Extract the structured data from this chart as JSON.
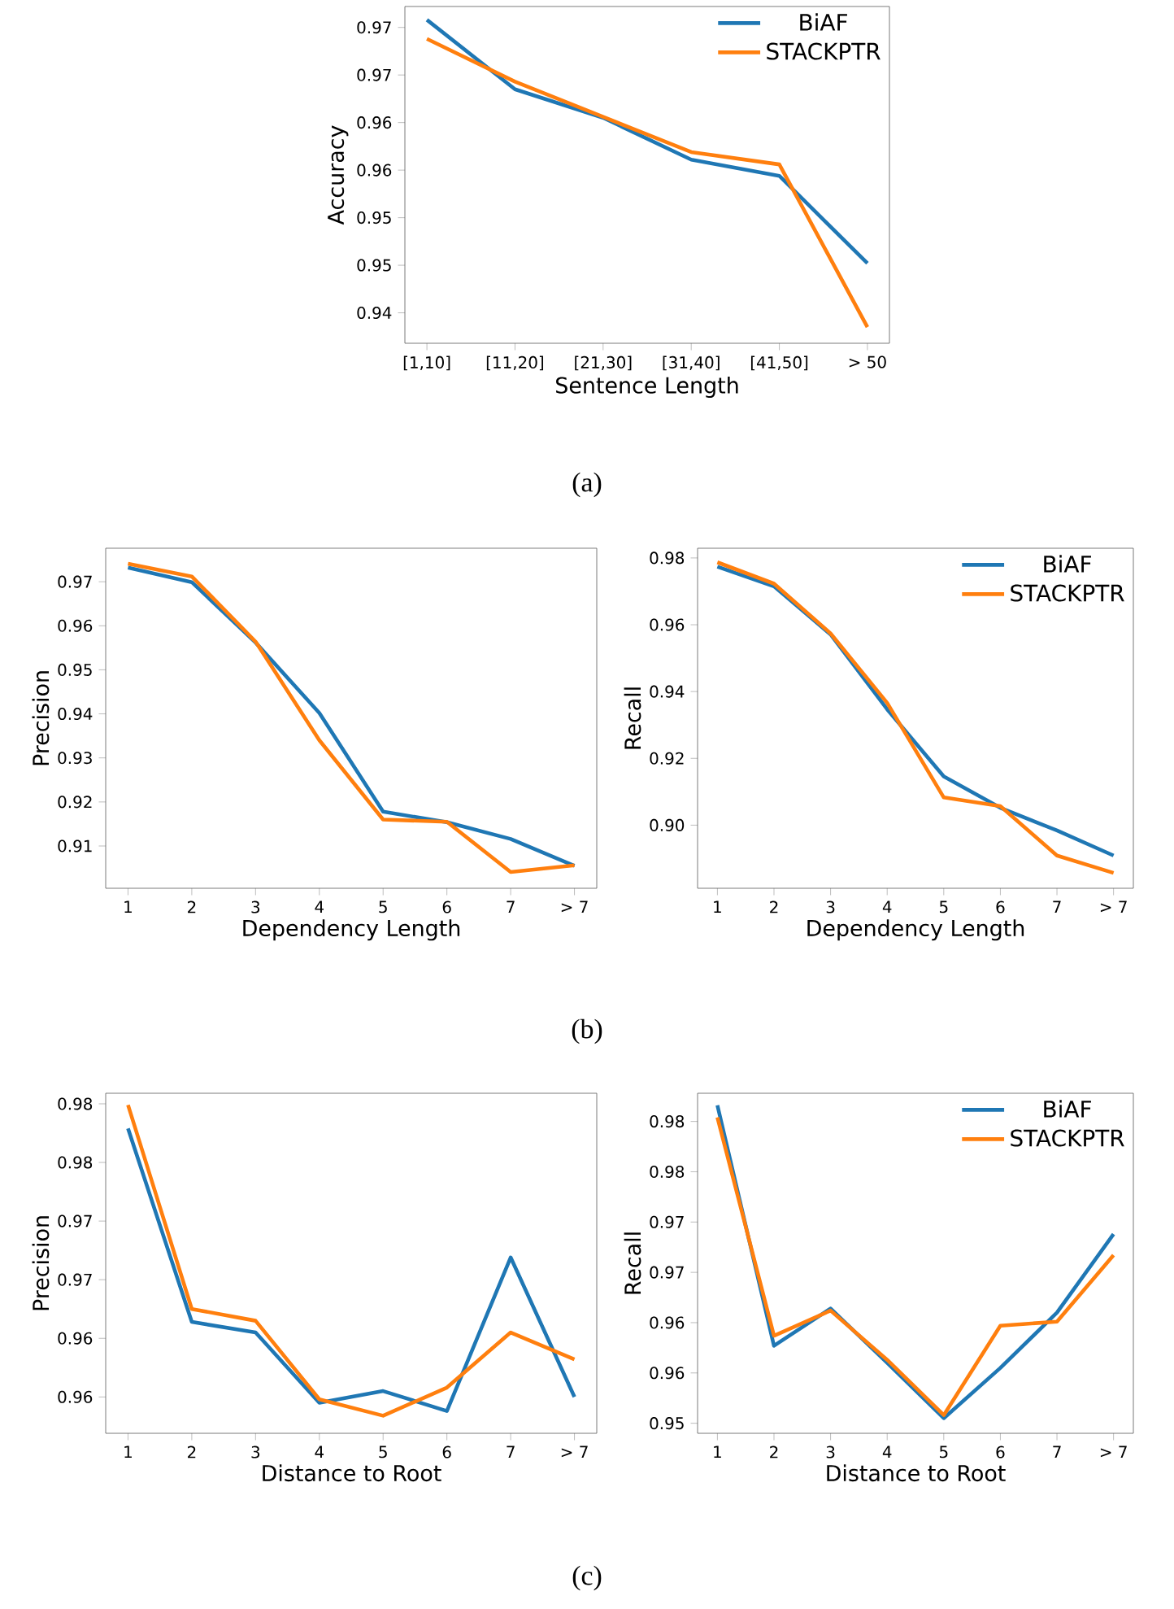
{
  "chart_data": [
    {
      "type": "line",
      "categories": [
        "[1,10]",
        "[11,20]",
        "[21,30]",
        "[31,40]",
        "[41,50]",
        "> 50"
      ],
      "xlabel": "Sentence Length",
      "ylabel": "Accuracy",
      "legend": "top right",
      "annotations": [
        "(a)"
      ],
      "ylim": [
        0.9418,
        0.9772
      ],
      "yticks": [
        {
          "value": 0.945,
          "label": "0.94"
        },
        {
          "value": 0.95,
          "label": "0.95"
        },
        {
          "value": 0.955,
          "label": "0.95"
        },
        {
          "value": 0.96,
          "label": "0.96"
        },
        {
          "value": 0.965,
          "label": "0.96"
        },
        {
          "value": 0.97,
          "label": "0.97"
        },
        {
          "value": 0.975,
          "label": "0.97"
        }
      ],
      "series": [
        {
          "name": "BiAF",
          "color": "#1f77b4",
          "values": [
            0.9758,
            0.9685,
            0.9655,
            0.9611,
            0.9594,
            0.9502
          ]
        },
        {
          "name": "STACKPTR",
          "color": "#ff7f0e",
          "values": [
            0.9738,
            0.9693,
            0.9656,
            0.9619,
            0.9606,
            0.9435
          ]
        }
      ]
    },
    {
      "type": "line",
      "categories": [
        "1",
        "2",
        "3",
        "4",
        "5",
        "6",
        "7",
        "> 7"
      ],
      "xlabel": "Dependency Length",
      "ylabel": "Precision",
      "annotations": [
        "(b)"
      ],
      "ylim": [
        0.9004,
        0.9776
      ],
      "yticks": [
        0.91,
        0.92,
        0.93,
        0.94,
        0.95,
        0.96,
        0.97
      ],
      "series": [
        {
          "color": "#1f77b4",
          "values": [
            0.9732,
            0.9699,
            0.9562,
            0.9402,
            0.9178,
            0.9154,
            0.9116,
            0.9055
          ]
        },
        {
          "color": "#ff7f0e",
          "values": [
            0.9741,
            0.9712,
            0.9564,
            0.934,
            0.916,
            0.9155,
            0.9041,
            0.9056
          ]
        }
      ]
    },
    {
      "type": "line",
      "categories": [
        "1",
        "2",
        "3",
        "4",
        "5",
        "6",
        "7",
        "> 7"
      ],
      "xlabel": "Dependency Length",
      "ylabel": "Recall",
      "legend": "top right",
      "ylim": [
        0.8811,
        0.9829
      ],
      "yticks": [
        {
          "value": 0.9,
          "label": "0.90"
        },
        {
          "value": 0.92,
          "label": "0.92"
        },
        {
          "value": 0.94,
          "label": "0.94"
        },
        {
          "value": 0.96,
          "label": "0.96"
        },
        {
          "value": 0.98,
          "label": "0.98"
        }
      ],
      "series": [
        {
          "name": "BiAF",
          "color": "#1f77b4",
          "values": [
            0.9774,
            0.9715,
            0.9571,
            0.9347,
            0.9146,
            0.9052,
            0.8984,
            0.8909
          ]
        },
        {
          "name": "STACKPTR",
          "color": "#ff7f0e",
          "values": [
            0.9787,
            0.9723,
            0.9574,
            0.9366,
            0.9083,
            0.9057,
            0.8909,
            0.8857
          ]
        }
      ]
    },
    {
      "type": "line",
      "categories": [
        "1",
        "2",
        "3",
        "4",
        "5",
        "6",
        "7",
        "> 7"
      ],
      "xlabel": "Distance to Root",
      "ylabel": "Precision",
      "annotations": [
        "(c)"
      ],
      "ylim": [
        0.9569,
        0.9859
      ],
      "yticks": [
        {
          "value": 0.96,
          "label": "0.96"
        },
        {
          "value": 0.965,
          "label": "0.96"
        },
        {
          "value": 0.97,
          "label": "0.97"
        },
        {
          "value": 0.975,
          "label": "0.97"
        },
        {
          "value": 0.98,
          "label": "0.98"
        },
        {
          "value": 0.985,
          "label": "0.98"
        }
      ],
      "series": [
        {
          "color": "#1f77b4",
          "values": [
            0.9829,
            0.9664,
            0.9655,
            0.9595,
            0.9605,
            0.9588,
            0.9719,
            0.96
          ]
        },
        {
          "color": "#ff7f0e",
          "values": [
            0.9849,
            0.9675,
            0.9665,
            0.9598,
            0.9584,
            0.9608,
            0.9655,
            0.9632
          ]
        }
      ]
    },
    {
      "type": "line",
      "categories": [
        "1",
        "2",
        "3",
        "4",
        "5",
        "6",
        "7",
        "> 7"
      ],
      "xlabel": "Distance to Root",
      "ylabel": "Recall",
      "legend": "top right",
      "ylim": [
        0.954,
        0.9878
      ],
      "yticks": [
        {
          "value": 0.955,
          "label": "0.95"
        },
        {
          "value": 0.96,
          "label": "0.96"
        },
        {
          "value": 0.965,
          "label": "0.96"
        },
        {
          "value": 0.97,
          "label": "0.97"
        },
        {
          "value": 0.975,
          "label": "0.97"
        },
        {
          "value": 0.98,
          "label": "0.98"
        },
        {
          "value": 0.985,
          "label": "0.98"
        }
      ],
      "series": [
        {
          "name": "BiAF",
          "color": "#1f77b4",
          "values": [
            0.9866,
            0.9627,
            0.9664,
            0.961,
            0.9555,
            0.9605,
            0.966,
            0.9738
          ]
        },
        {
          "name": "STACKPTR",
          "color": "#ff7f0e",
          "values": [
            0.9854,
            0.9637,
            0.9662,
            0.9613,
            0.9558,
            0.9647,
            0.9651,
            0.9717
          ]
        }
      ]
    }
  ]
}
